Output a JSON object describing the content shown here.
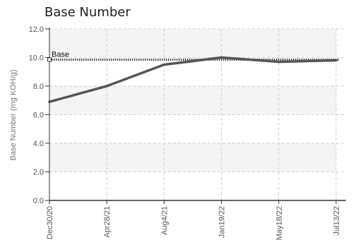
{
  "chart_data": {
    "type": "line",
    "title": "Base Number",
    "ylabel": "Base Number (mg KOH/g)",
    "xlabel": "",
    "ylim": [
      0,
      12
    ],
    "yticks": [
      "0.0",
      "2.0",
      "4.0",
      "6.0",
      "8.0",
      "10.0",
      "12.0"
    ],
    "categories": [
      "Dec30/20",
      "Apr28/21",
      "Aug4/21",
      "Jan19/22",
      "May18/22",
      "Jul13/22"
    ],
    "series": [
      {
        "values": [
          6.9,
          8.0,
          9.5,
          10.0,
          9.7,
          9.8
        ],
        "color": "#555555",
        "style": "solid"
      }
    ],
    "reference_lines": [
      {
        "label": "Base",
        "value": 9.85,
        "color": "#444444",
        "style": "dotted"
      }
    ],
    "grid": true,
    "band_colors": [
      "#f4f4f4",
      "#ffffff"
    ]
  }
}
